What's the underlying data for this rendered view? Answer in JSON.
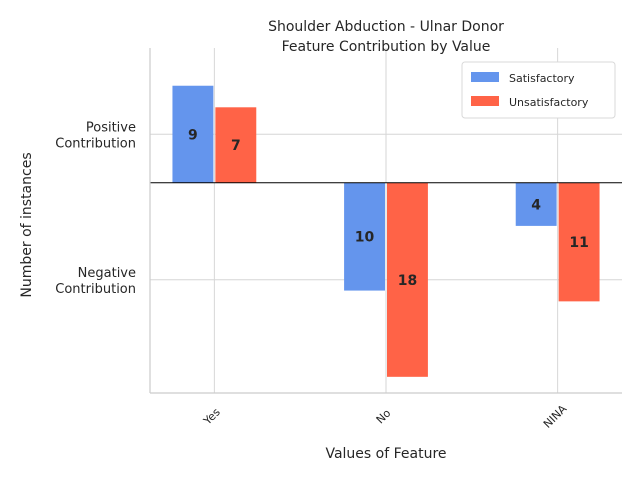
{
  "chart_data": {
    "type": "bar",
    "title_lines": [
      "Shoulder Abduction - Ulnar Donor",
      "Feature Contribution by Value"
    ],
    "xlabel": "Values of Feature",
    "ylabel": "Number of instances",
    "categories": [
      "Yes",
      "No",
      "NINA"
    ],
    "y_tick_labels": [
      {
        "value": 4.5,
        "lines": [
          "Positive",
          "Contribution"
        ]
      },
      {
        "value": -9,
        "lines": [
          "Negative",
          "Contribution"
        ]
      }
    ],
    "ylim": [
      -19.5,
      12.5
    ],
    "series": [
      {
        "name": "Satisfactory",
        "color": "#6495ED",
        "values": [
          9,
          -10,
          -4
        ],
        "labels": [
          "9",
          "10",
          "4"
        ]
      },
      {
        "name": "Unsatisfactory",
        "color": "#FF6347",
        "values": [
          7,
          -18,
          -11
        ],
        "labels": [
          "7",
          "18",
          "11"
        ]
      }
    ],
    "legend_position": "top-right",
    "grid": true
  }
}
